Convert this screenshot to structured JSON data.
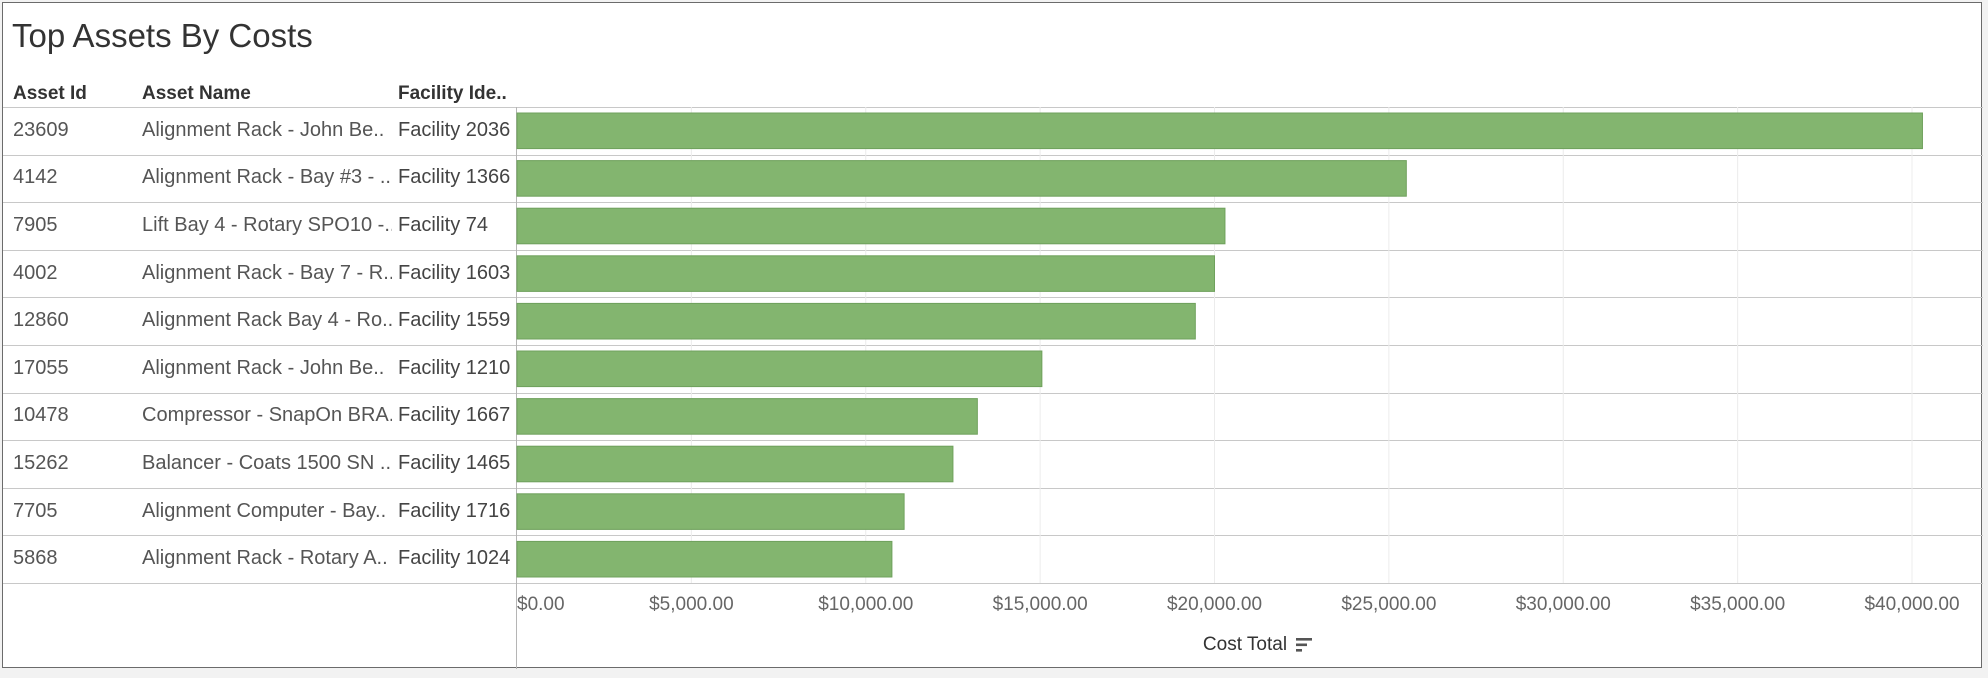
{
  "title": "Top Assets By Costs",
  "columns": {
    "asset_id": "Asset Id",
    "asset_name": "Asset Name",
    "facility": "Facility Ide.."
  },
  "rows": [
    {
      "asset_id": "23609",
      "asset_name": "Alignment Rack - John Be..",
      "facility": "Facility 2036"
    },
    {
      "asset_id": "4142",
      "asset_name": "Alignment Rack - Bay #3 - ..",
      "facility": "Facility 1366"
    },
    {
      "asset_id": "7905",
      "asset_name": "Lift Bay 4 - Rotary SPO10 -..",
      "facility": "Facility 74"
    },
    {
      "asset_id": "4002",
      "asset_name": "Alignment Rack - Bay 7 - R..",
      "facility": "Facility 1603"
    },
    {
      "asset_id": "12860",
      "asset_name": "Alignment Rack Bay 4 - Ro..",
      "facility": "Facility 1559"
    },
    {
      "asset_id": "17055",
      "asset_name": "Alignment Rack - John Be..",
      "facility": "Facility 1210"
    },
    {
      "asset_id": "10478",
      "asset_name": "Compressor - SnapOn BRA..",
      "facility": "Facility 1667"
    },
    {
      "asset_id": "15262",
      "asset_name": "Balancer - Coats 1500 SN ..",
      "facility": "Facility 1465"
    },
    {
      "asset_id": "7705",
      "asset_name": "Alignment Computer - Bay..",
      "facility": "Facility 1716"
    },
    {
      "asset_id": "5868",
      "asset_name": "Alignment Rack - Rotary A..",
      "facility": "Facility 1024"
    }
  ],
  "colors": {
    "bar_fill": "#83b56f",
    "bar_stroke": "#6fa15c",
    "gridline": "#ececec"
  },
  "icons": {
    "sort": "sort-descending-icon"
  },
  "chart_data": {
    "type": "bar",
    "orientation": "horizontal",
    "title": "Top Assets By Costs",
    "xlabel": "Cost Total",
    "ylabel": "",
    "categories": [
      "23609",
      "4142",
      "7905",
      "4002",
      "12860",
      "17055",
      "10478",
      "15262",
      "7705",
      "5868"
    ],
    "values": [
      40300,
      25500,
      20300,
      20000,
      19450,
      15050,
      13200,
      12500,
      11100,
      10750
    ],
    "xlim": [
      0,
      42000
    ],
    "ticks": [
      0,
      5000,
      10000,
      15000,
      20000,
      25000,
      30000,
      35000,
      40000
    ],
    "tick_labels": [
      "$0.00",
      "$5,000.00",
      "$10,000.00",
      "$15,000.00",
      "$20,000.00",
      "$25,000.00",
      "$30,000.00",
      "$35,000.00",
      "$40,000.00"
    ],
    "grid": true,
    "sorted": "descending"
  }
}
